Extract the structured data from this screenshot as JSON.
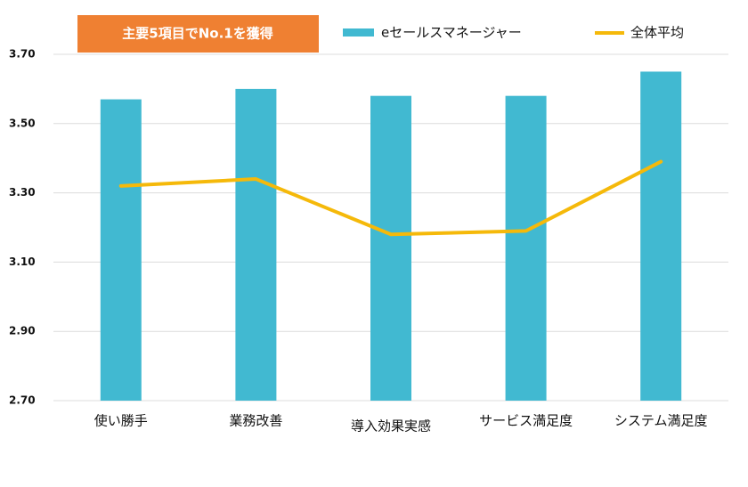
{
  "chart_data": {
    "type": "bar",
    "annotation": "主要5項目でNo.1を獲得",
    "categories": [
      "使い勝手",
      "業務改善",
      "導入効果実感",
      "サービス満足度",
      "システム満足度"
    ],
    "series": [
      {
        "name": "eセールスマネージャー",
        "type": "bar",
        "color": "#41b9d1",
        "values": [
          3.57,
          3.6,
          3.58,
          3.58,
          3.65
        ]
      },
      {
        "name": "全体平均",
        "type": "line",
        "color": "#f5b90a",
        "values": [
          3.32,
          3.34,
          3.18,
          3.19,
          3.39
        ]
      }
    ],
    "ylim": [
      2.7,
      3.7
    ],
    "yticks": [
      {
        "value": 2.7,
        "label": "2.70"
      },
      {
        "value": 2.9,
        "label": "2.90"
      },
      {
        "value": 3.1,
        "label": "3.10"
      },
      {
        "value": 3.3,
        "label": "3.30"
      },
      {
        "value": 3.5,
        "label": "3.50"
      },
      {
        "value": 3.7,
        "label": "3.70"
      }
    ],
    "grid": true
  }
}
